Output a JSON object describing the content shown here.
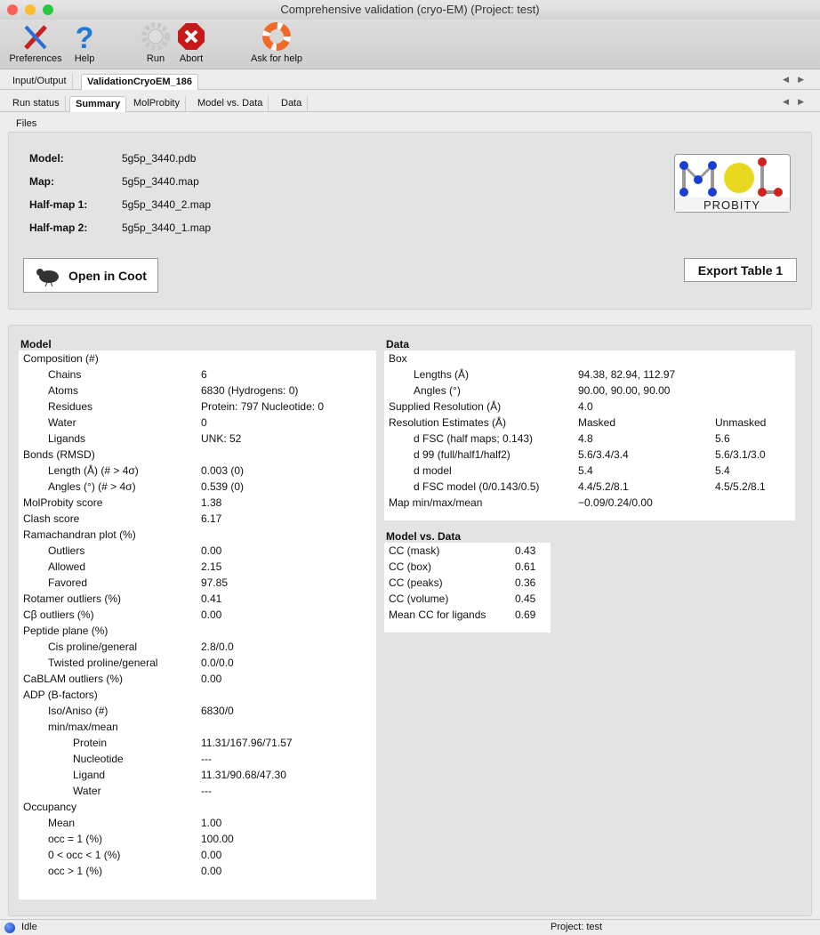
{
  "window": {
    "title": "Comprehensive validation (cryo-EM) (Project: test)"
  },
  "toolbar": {
    "preferences": "Preferences",
    "help": "Help",
    "run": "Run",
    "abort": "Abort",
    "ask": "Ask for help"
  },
  "tabs": [
    "Input/Output",
    "ValidationCryoEM_186"
  ],
  "subtabs": [
    "Run status",
    "Summary",
    "MolProbity",
    "Model vs. Data",
    "Data"
  ],
  "files": {
    "section": "Files",
    "rows": [
      [
        "Model:",
        "5g5p_3440.pdb"
      ],
      [
        "Map:",
        "5g5p_3440.map"
      ],
      [
        "Half-map 1:",
        "5g5p_3440_2.map"
      ],
      [
        "Half-map 2:",
        "5g5p_3440_1.map"
      ]
    ],
    "coot": "Open in Coot",
    "export": "Export Table 1",
    "logo": "MolProbity"
  },
  "model": {
    "title": "Model",
    "rows": [
      [
        0,
        "Composition (#)",
        ""
      ],
      [
        1,
        "Chains",
        "6"
      ],
      [
        1,
        "Atoms",
        "6830 (Hydrogens: 0)"
      ],
      [
        1,
        "Residues",
        "Protein: 797 Nucleotide: 0"
      ],
      [
        1,
        "Water",
        "0"
      ],
      [
        1,
        "Ligands",
        "UNK: 52"
      ],
      [
        0,
        "Bonds (RMSD)",
        ""
      ],
      [
        1,
        "Length (Å) (# > 4σ)",
        "0.003 (0)"
      ],
      [
        1,
        "Angles (°) (# > 4σ)",
        "0.539 (0)"
      ],
      [
        0,
        "MolProbity score",
        "1.38"
      ],
      [
        0,
        "Clash score",
        "6.17"
      ],
      [
        0,
        "Ramachandran plot (%)",
        ""
      ],
      [
        1,
        "Outliers",
        "0.00"
      ],
      [
        1,
        "Allowed",
        "2.15"
      ],
      [
        1,
        "Favored",
        "97.85"
      ],
      [
        0,
        "Rotamer outliers (%)",
        "0.41"
      ],
      [
        0,
        "Cβ outliers (%)",
        "0.00"
      ],
      [
        0,
        "Peptide plane (%)",
        ""
      ],
      [
        1,
        "Cis proline/general",
        "2.8/0.0"
      ],
      [
        1,
        "Twisted proline/general",
        "0.0/0.0"
      ],
      [
        0,
        "CaBLAM outliers (%)",
        "0.00"
      ],
      [
        0,
        "ADP (B-factors)",
        ""
      ],
      [
        1,
        "Iso/Aniso (#)",
        "6830/0"
      ],
      [
        1,
        "min/max/mean",
        ""
      ],
      [
        2,
        "Protein",
        "11.31/167.96/71.57"
      ],
      [
        2,
        "Nucleotide",
        "---"
      ],
      [
        2,
        "Ligand",
        "11.31/90.68/47.30"
      ],
      [
        2,
        "Water",
        "---"
      ],
      [
        0,
        "Occupancy",
        ""
      ],
      [
        1,
        "Mean",
        "1.00"
      ],
      [
        1,
        "occ = 1 (%)",
        "100.00"
      ],
      [
        1,
        "0 < occ < 1 (%)",
        "0.00"
      ],
      [
        1,
        "occ > 1 (%)",
        "0.00"
      ]
    ]
  },
  "data": {
    "title": "Data",
    "rows": [
      [
        0,
        "Box",
        "",
        ""
      ],
      [
        1,
        "Lengths (Å)",
        "94.38, 82.94, 112.97",
        ""
      ],
      [
        1,
        "Angles (°)",
        "90.00, 90.00, 90.00",
        ""
      ],
      [
        0,
        "Supplied Resolution (Å)",
        "4.0",
        ""
      ],
      [
        0,
        "Resolution Estimates (Å)",
        "Masked",
        "Unmasked"
      ],
      [
        1,
        "d FSC (half maps; 0.143)",
        "4.8",
        "5.6"
      ],
      [
        1,
        "d 99 (full/half1/half2)",
        "5.6/3.4/3.4",
        "5.6/3.1/3.0"
      ],
      [
        1,
        "d model",
        "5.4",
        "5.4"
      ],
      [
        1,
        "d FSC model (0/0.143/0.5)",
        "4.4/5.2/8.1",
        "4.5/5.2/8.1"
      ],
      [
        0,
        "Map min/max/mean",
        "−0.09/0.24/0.00",
        ""
      ]
    ]
  },
  "mvd": {
    "title": "Model vs. Data",
    "rows": [
      [
        "CC (mask)",
        "0.43"
      ],
      [
        "CC (box)",
        "0.61"
      ],
      [
        "CC (peaks)",
        "0.36"
      ],
      [
        "CC (volume)",
        "0.45"
      ],
      [
        "Mean CC for ligands",
        "0.69"
      ]
    ]
  },
  "status": {
    "state": "Idle",
    "project": "Project: test"
  }
}
